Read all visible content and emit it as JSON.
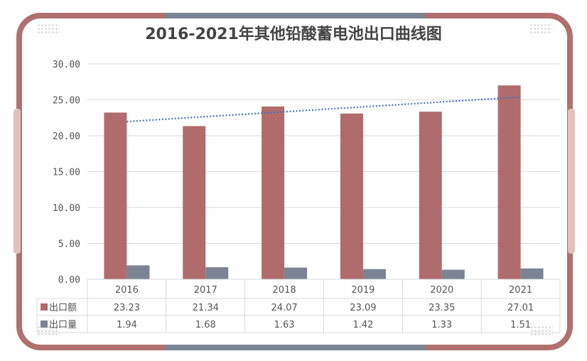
{
  "chart_data": {
    "type": "bar",
    "title": "2016-2021年其他铅酸蓄电池出口曲线图",
    "categories": [
      "2016",
      "2017",
      "2018",
      "2019",
      "2020",
      "2021"
    ],
    "series": [
      {
        "name": "出口额",
        "values": [
          23.23,
          21.34,
          24.07,
          23.09,
          23.35,
          27.01
        ],
        "color": "#b06c6c",
        "display": [
          "23.23",
          "21.34",
          "24.07",
          "23.09",
          "23.35",
          "27.01"
        ]
      },
      {
        "name": "出口量",
        "values": [
          1.94,
          1.68,
          1.63,
          1.42,
          1.33,
          1.51
        ],
        "color": "#7a8494",
        "display": [
          "1.94",
          "1.68",
          "1.63",
          "1.42",
          "1.33",
          "1.51"
        ]
      }
    ],
    "trendline": {
      "series": "出口额",
      "type": "linear",
      "style": "dotted",
      "color": "#4472c4"
    },
    "ylim": [
      0,
      30
    ],
    "yticks": [
      "0.00",
      "5.00",
      "10.00",
      "15.00",
      "20.00",
      "25.00",
      "30.00"
    ],
    "grid": true,
    "data_table": true
  },
  "colors": {
    "frame": "#b07070",
    "accent": "#7a8494",
    "side_tab": "#e3c0bb"
  }
}
